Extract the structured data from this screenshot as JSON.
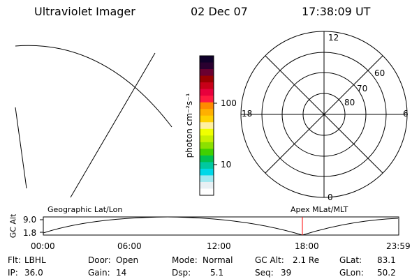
{
  "header": {
    "instrument": "Ultraviolet Imager",
    "date": "02 Dec 07",
    "time": "17:38:09 UT"
  },
  "colorbar": {
    "axis_label": "photon cm⁻²s⁻¹",
    "ticks": [
      "100",
      "10"
    ],
    "colors": [
      "#10002a",
      "#2a0030",
      "#6a0030",
      "#9a0000",
      "#c80018",
      "#e8003c",
      "#ff1a40",
      "#ff8a00",
      "#ffb000",
      "#ffd200",
      "#fff0a0",
      "#f0ff00",
      "#c8f000",
      "#8ce000",
      "#40d000",
      "#00c050",
      "#00c8a0",
      "#00d8e8",
      "#a0e8f0",
      "#e8f0f4",
      "#ffffff"
    ]
  },
  "polar_plot": {
    "clock_labels": {
      "top": "12",
      "left": "18",
      "right": "6",
      "bottom": "0"
    },
    "lat_labels": [
      "60",
      "70",
      "80"
    ]
  },
  "timeline": {
    "ylabel": "GC Alt",
    "ymax": "9.0",
    "ymin": "1.8",
    "left_caption": "Geographic Lat/Lon",
    "right_caption": "Apex MLat/MLT",
    "x_ticks": [
      "00:00",
      "06:00",
      "12:00",
      "18:00",
      "23:59"
    ],
    "marker_color": "#ff0000"
  },
  "status": {
    "flt_label": "Flt:",
    "flt_value": "LBHL",
    "ip_label": "IP:",
    "ip_value": "36.0",
    "door_label": "Door:",
    "door_value": "Open",
    "gain_label": "Gain:",
    "gain_value": "14",
    "mode_label": "Mode:",
    "mode_value": "Normal",
    "dsp_label": "Dsp:",
    "dsp_value": "5.1",
    "gcalt_label": "GC Alt:",
    "gcalt_value": "2.1 Re",
    "seq_label": "Seq:",
    "seq_value": "39",
    "glat_label": "GLat:",
    "glat_value": "83.1",
    "glon_label": "GLon:",
    "glon_value": "50.2"
  }
}
